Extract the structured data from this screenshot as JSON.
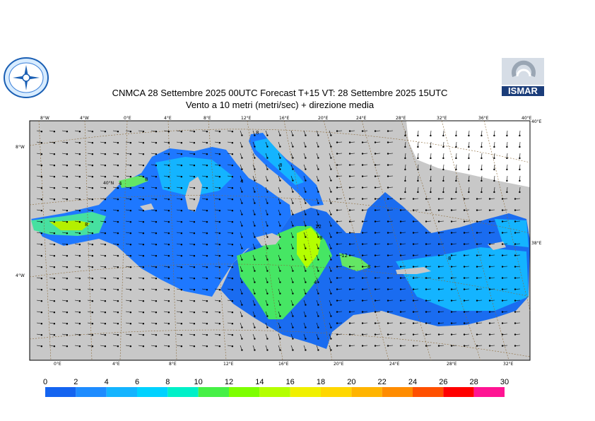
{
  "title": {
    "line1": "CNMCA 28 Settembre 2025 00UTC Forecast T+15 VT: 28 Settembre 2025 15UTC",
    "line2": "Vento a 10 metri (metri/sec) + direzione media"
  },
  "logos": {
    "left": "cnmca-seal-icon",
    "right": "ISMAR"
  },
  "map": {
    "top_lon_labels": [
      "8°W",
      "4°W",
      "0°E",
      "4°E",
      "8°E",
      "12°E",
      "16°E",
      "20°E",
      "24°E",
      "28°E",
      "32°E",
      "36°E",
      "40°E"
    ],
    "top_right_label": "40°E",
    "bottom_lon_labels": [
      "0°E",
      "4°E",
      "8°E",
      "12°E",
      "16°E",
      "20°E",
      "24°E",
      "28°E",
      "32°E"
    ],
    "left_lat_labels": [
      "8°W",
      "4°W"
    ],
    "right_lat_labels": [
      "38°E"
    ],
    "inner_label": "40°N",
    "contour_labels": [
      "8",
      "4",
      "8",
      "4",
      "8",
      "8",
      "12",
      "8",
      "12",
      "8",
      "4",
      "8"
    ],
    "colors": {
      "land": "#c8c8c8",
      "sea_low": "#1464f0",
      "sea_mid": "#00d2ff",
      "sea_high": "#7dff00"
    }
  },
  "legend": {
    "ticks": [
      "0",
      "2",
      "4",
      "6",
      "8",
      "10",
      "12",
      "14",
      "16",
      "18",
      "20",
      "22",
      "24",
      "26",
      "28",
      "30"
    ],
    "colors": [
      "#1464f0",
      "#1e8cff",
      "#14b4ff",
      "#00d2ff",
      "#00f0c8",
      "#46f046",
      "#7dff00",
      "#b4ff00",
      "#f0f000",
      "#ffd700",
      "#ffb400",
      "#ff8c00",
      "#ff5000",
      "#ff0000",
      "#ff1493"
    ]
  }
}
